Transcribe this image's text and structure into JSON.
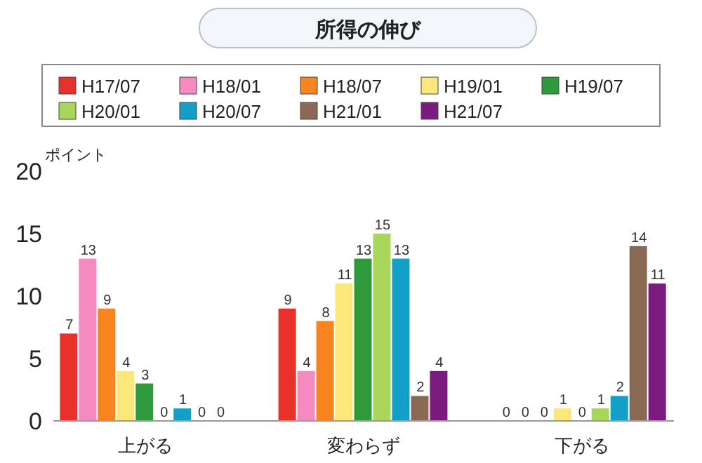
{
  "chart_data": {
    "type": "bar",
    "title": "所得の伸び",
    "ylabel": "ポイント",
    "categories": [
      "上がる",
      "変わらず",
      "下がる"
    ],
    "series": [
      {
        "name": "H17/07",
        "color": "#e8312a",
        "values": [
          7,
          9,
          0
        ]
      },
      {
        "name": "H18/01",
        "color": "#f48ac0",
        "values": [
          13,
          4,
          0
        ]
      },
      {
        "name": "H18/07",
        "color": "#f7841f",
        "values": [
          9,
          8,
          0
        ]
      },
      {
        "name": "H19/01",
        "color": "#fbe77a",
        "values": [
          4,
          11,
          1
        ]
      },
      {
        "name": "H19/07",
        "color": "#2f9a3b",
        "values": [
          3,
          13,
          0
        ]
      },
      {
        "name": "H20/01",
        "color": "#a8d65a",
        "values": [
          0,
          15,
          1
        ]
      },
      {
        "name": "H20/07",
        "color": "#12a0c8",
        "values": [
          1,
          13,
          2
        ]
      },
      {
        "name": "H21/01",
        "color": "#8b6a55",
        "values": [
          0,
          2,
          14
        ]
      },
      {
        "name": "H21/07",
        "color": "#7b1a7f",
        "values": [
          0,
          4,
          11
        ]
      }
    ],
    "ylim": [
      0,
      20
    ],
    "yticks": [
      0,
      5,
      10,
      15,
      20
    ],
    "grid": false,
    "legend": "top",
    "data_labels": true
  }
}
